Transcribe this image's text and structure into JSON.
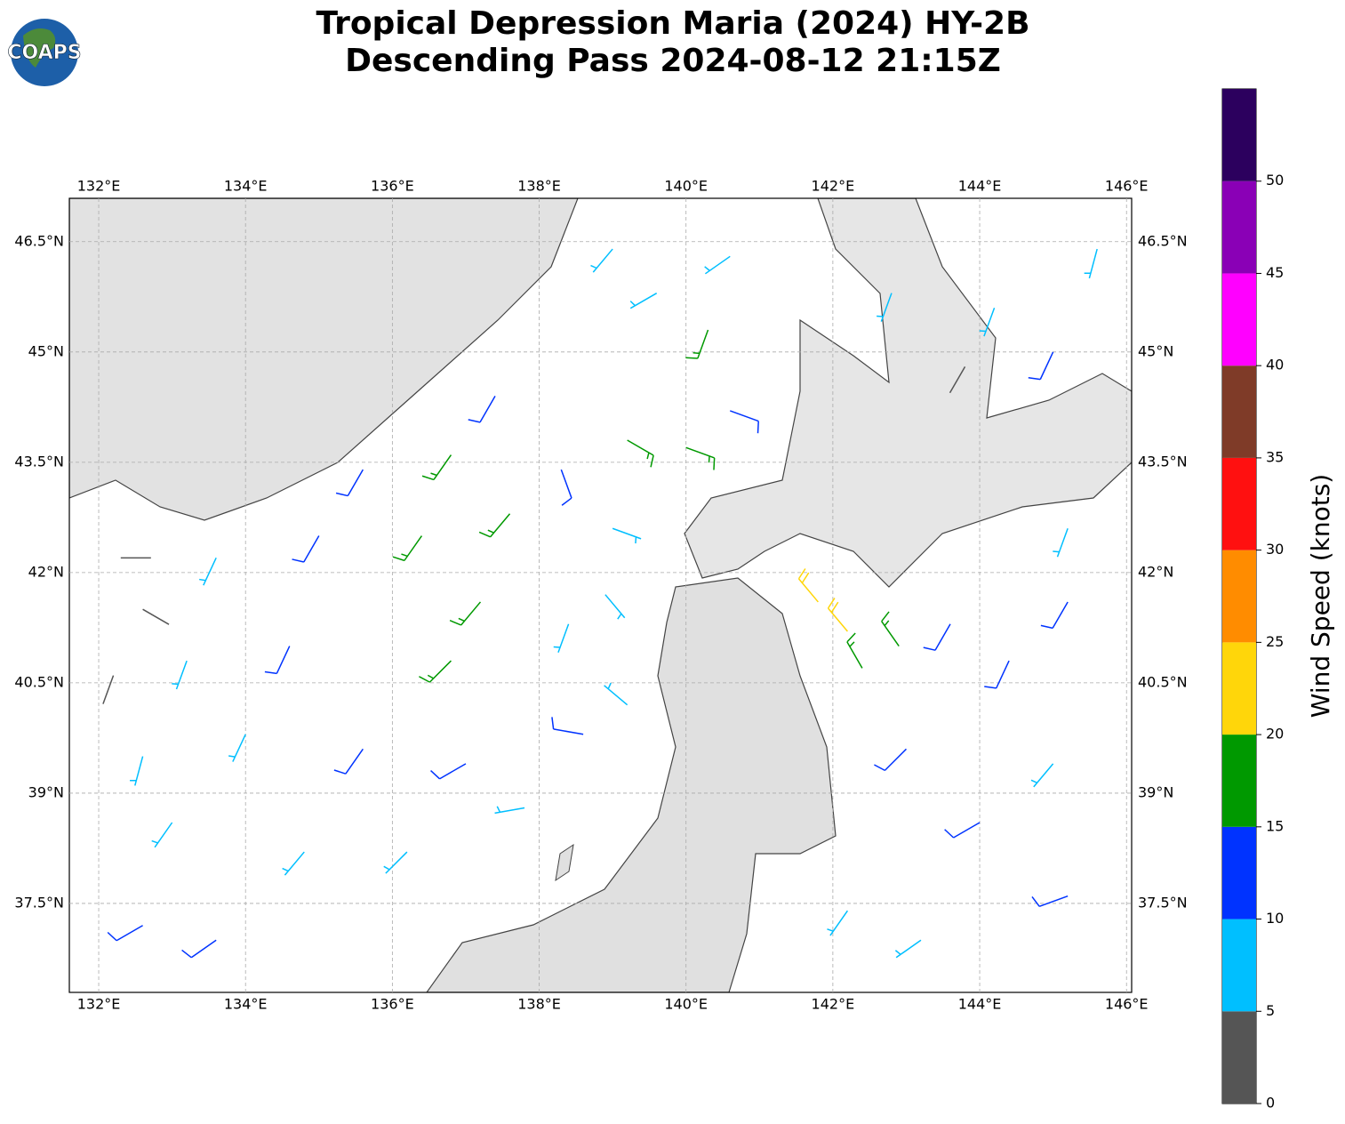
{
  "title": [
    "Tropical Depression Maria (2024) HY-2B",
    "Descending Pass 2024-08-12 21:15Z"
  ],
  "logo": "COAPS",
  "map": {
    "xlim": [
      131.6,
      146.07
    ],
    "ylim": [
      36.29,
      47.09
    ],
    "grid": true,
    "xticks": [
      {
        "value": 132,
        "label": "132°E"
      },
      {
        "value": 134,
        "label": "134°E"
      },
      {
        "value": 136,
        "label": "136°E"
      },
      {
        "value": 138,
        "label": "138°E"
      },
      {
        "value": 140,
        "label": "140°E"
      },
      {
        "value": 142,
        "label": "142°E"
      },
      {
        "value": 144,
        "label": "144°E"
      },
      {
        "value": 146,
        "label": "146°E"
      }
    ],
    "yticks": [
      {
        "value": 37.5,
        "label": "37.5°N"
      },
      {
        "value": 39,
        "label": "39°N"
      },
      {
        "value": 40.5,
        "label": "40.5°N"
      },
      {
        "value": 42,
        "label": "42°N"
      },
      {
        "value": 43.5,
        "label": "43.5°N"
      },
      {
        "value": 45,
        "label": "45°N"
      },
      {
        "value": 46.5,
        "label": "46.5°N"
      }
    ],
    "barbs": [
      {
        "lon": 132.3,
        "lat": 42.2,
        "speed": 3,
        "dir": 90
      },
      {
        "lon": 132.6,
        "lat": 41.5,
        "speed": 3,
        "dir": 120
      },
      {
        "lon": 132.2,
        "lat": 40.6,
        "speed": 4,
        "dir": 200
      },
      {
        "lon": 132.6,
        "lat": 39.5,
        "speed": 7,
        "dir": 195
      },
      {
        "lon": 133.2,
        "lat": 40.8,
        "speed": 8,
        "dir": 200
      },
      {
        "lon": 133.6,
        "lat": 42.2,
        "speed": 8,
        "dir": 205
      },
      {
        "lon": 133.0,
        "lat": 38.6,
        "speed": 8,
        "dir": 215
      },
      {
        "lon": 134.0,
        "lat": 39.8,
        "speed": 8,
        "dir": 205
      },
      {
        "lon": 134.6,
        "lat": 41.0,
        "speed": 12,
        "dir": 205
      },
      {
        "lon": 135.0,
        "lat": 42.5,
        "speed": 12,
        "dir": 210
      },
      {
        "lon": 135.6,
        "lat": 43.4,
        "speed": 12,
        "dir": 210
      },
      {
        "lon": 132.6,
        "lat": 37.2,
        "speed": 12,
        "dir": 240
      },
      {
        "lon": 133.6,
        "lat": 37.0,
        "speed": 12,
        "dir": 235
      },
      {
        "lon": 134.8,
        "lat": 38.2,
        "speed": 8,
        "dir": 220
      },
      {
        "lon": 135.6,
        "lat": 39.6,
        "speed": 12,
        "dir": 215
      },
      {
        "lon": 136.4,
        "lat": 42.5,
        "speed": 17,
        "dir": 215
      },
      {
        "lon": 136.8,
        "lat": 43.6,
        "speed": 17,
        "dir": 215
      },
      {
        "lon": 137.2,
        "lat": 41.6,
        "speed": 17,
        "dir": 220
      },
      {
        "lon": 137.6,
        "lat": 42.8,
        "speed": 17,
        "dir": 220
      },
      {
        "lon": 137.4,
        "lat": 44.4,
        "speed": 12,
        "dir": 210
      },
      {
        "lon": 136.8,
        "lat": 40.8,
        "speed": 17,
        "dir": 225
      },
      {
        "lon": 137.0,
        "lat": 39.4,
        "speed": 12,
        "dir": 240
      },
      {
        "lon": 136.2,
        "lat": 38.2,
        "speed": 8,
        "dir": 225
      },
      {
        "lon": 137.8,
        "lat": 38.8,
        "speed": 8,
        "dir": 260
      },
      {
        "lon": 138.6,
        "lat": 39.8,
        "speed": 12,
        "dir": 280
      },
      {
        "lon": 139.2,
        "lat": 40.2,
        "speed": 8,
        "dir": 310
      },
      {
        "lon": 138.4,
        "lat": 41.3,
        "speed": 7,
        "dir": 200
      },
      {
        "lon": 138.9,
        "lat": 41.7,
        "speed": 7,
        "dir": 140
      },
      {
        "lon": 139.0,
        "lat": 42.6,
        "speed": 8,
        "dir": 110
      },
      {
        "lon": 138.3,
        "lat": 43.4,
        "speed": 12,
        "dir": 160
      },
      {
        "lon": 139.2,
        "lat": 43.8,
        "speed": 17,
        "dir": 120
      },
      {
        "lon": 140.0,
        "lat": 43.7,
        "speed": 17,
        "dir": 110
      },
      {
        "lon": 140.6,
        "lat": 44.2,
        "speed": 12,
        "dir": 110
      },
      {
        "lon": 140.3,
        "lat": 45.3,
        "speed": 17,
        "dir": 200
      },
      {
        "lon": 139.6,
        "lat": 45.8,
        "speed": 8,
        "dir": 240
      },
      {
        "lon": 140.6,
        "lat": 46.3,
        "speed": 8,
        "dir": 235
      },
      {
        "lon": 139.0,
        "lat": 46.4,
        "speed": 8,
        "dir": 220
      },
      {
        "lon": 141.8,
        "lat": 41.6,
        "speed": 22,
        "dir": 320
      },
      {
        "lon": 142.2,
        "lat": 41.2,
        "speed": 22,
        "dir": 320
      },
      {
        "lon": 142.4,
        "lat": 40.7,
        "speed": 17,
        "dir": 330
      },
      {
        "lon": 142.9,
        "lat": 41.0,
        "speed": 17,
        "dir": 325
      },
      {
        "lon": 143.6,
        "lat": 41.3,
        "speed": 12,
        "dir": 210
      },
      {
        "lon": 144.4,
        "lat": 40.8,
        "speed": 12,
        "dir": 205
      },
      {
        "lon": 145.2,
        "lat": 41.6,
        "speed": 12,
        "dir": 210
      },
      {
        "lon": 143.0,
        "lat": 39.6,
        "speed": 12,
        "dir": 225
      },
      {
        "lon": 144.0,
        "lat": 38.6,
        "speed": 12,
        "dir": 240
      },
      {
        "lon": 145.2,
        "lat": 37.6,
        "speed": 12,
        "dir": 250
      },
      {
        "lon": 142.2,
        "lat": 37.4,
        "speed": 8,
        "dir": 215
      },
      {
        "lon": 143.2,
        "lat": 37.0,
        "speed": 8,
        "dir": 235
      },
      {
        "lon": 145.0,
        "lat": 39.4,
        "speed": 8,
        "dir": 220
      },
      {
        "lon": 145.2,
        "lat": 42.6,
        "speed": 8,
        "dir": 200
      },
      {
        "lon": 144.2,
        "lat": 45.6,
        "speed": 8,
        "dir": 200
      },
      {
        "lon": 145.0,
        "lat": 45.0,
        "speed": 12,
        "dir": 205
      },
      {
        "lon": 145.6,
        "lat": 46.4,
        "speed": 8,
        "dir": 195
      },
      {
        "lon": 143.8,
        "lat": 44.8,
        "speed": 3,
        "dir": 210
      },
      {
        "lon": 142.8,
        "lat": 45.8,
        "speed": 8,
        "dir": 200
      }
    ]
  },
  "colorbar": {
    "label": "Wind Speed (knots)",
    "ylim": [
      0,
      55
    ],
    "bounds": [
      0,
      5,
      10,
      15,
      20,
      25,
      30,
      35,
      40,
      45,
      50,
      55
    ],
    "colors": [
      "#555555",
      "#00bfff",
      "#0033ff",
      "#009900",
      "#ffd60a",
      "#ff8c00",
      "#ff1010",
      "#7f3b28",
      "#ff00ff",
      "#8a00b6",
      "#2c005e"
    ],
    "ticks": [
      0,
      5,
      10,
      15,
      20,
      25,
      30,
      35,
      40,
      45,
      50
    ]
  }
}
